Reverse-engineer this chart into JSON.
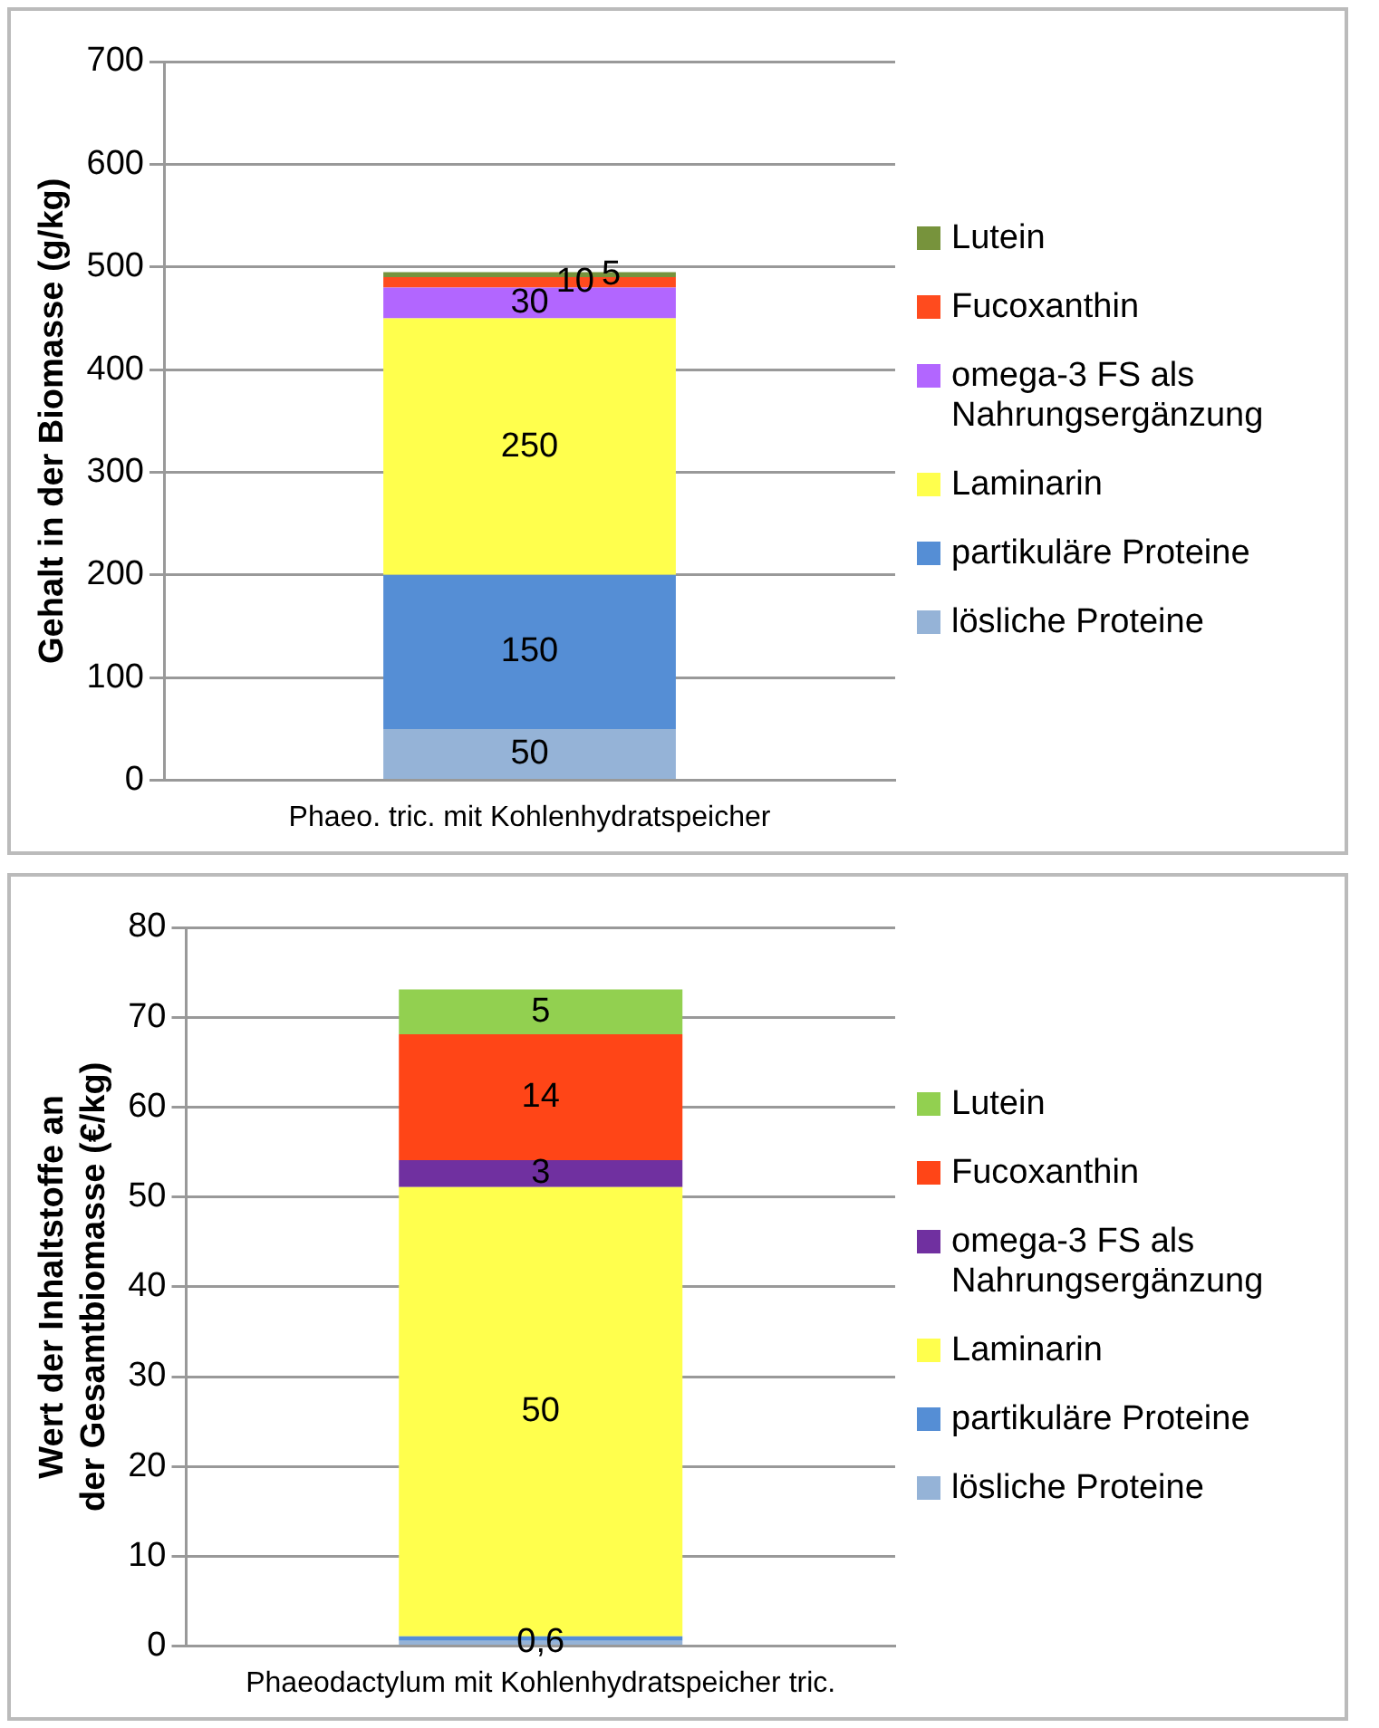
{
  "chart_data": [
    {
      "type": "bar",
      "stacked": true,
      "categories": [
        "Phaeo. tric. mit Kohlenhydratspeicher"
      ],
      "ylabel": "Gehalt in der Biomasse (g/kg)",
      "ylim": [
        0,
        700
      ],
      "yticks": [
        0,
        100,
        200,
        300,
        400,
        500,
        600,
        700
      ],
      "grid": "y",
      "legend": "right",
      "series": [
        {
          "name": "lösliche Proteine",
          "color": "#95b3d7",
          "values": [
            50
          ],
          "value_labels": [
            "50"
          ]
        },
        {
          "name": "partikuläre Proteine",
          "color": "#558ed5",
          "values": [
            150
          ],
          "value_labels": [
            "150"
          ]
        },
        {
          "name": "Laminarin",
          "color": "#ffff4d",
          "values": [
            250
          ],
          "value_labels": [
            "250"
          ]
        },
        {
          "name": "omega-3 FS als Nahrungsergänzung",
          "color": "#b266ff",
          "values": [
            30
          ],
          "value_labels": [
            "30"
          ]
        },
        {
          "name": "Fucoxanthin",
          "color": "#ff4b1e",
          "values": [
            10
          ],
          "value_labels": [
            "10"
          ]
        },
        {
          "name": "Lutein",
          "color": "#77933c",
          "values": [
            5
          ],
          "value_labels": [
            "5"
          ]
        }
      ]
    },
    {
      "type": "bar",
      "stacked": true,
      "categories": [
        "Phaeodactylum mit Kohlenhydratspeicher tric."
      ],
      "ylabel": "Wert der Inhaltstoffe an der Gesamtbiomasse (€/kg)",
      "ylim": [
        0,
        80
      ],
      "yticks": [
        0,
        10,
        20,
        30,
        40,
        50,
        60,
        70,
        80
      ],
      "grid": "y",
      "legend": "right",
      "series": [
        {
          "name": "lösliche Proteine",
          "color": "#95b3d7",
          "values": [
            0.6
          ],
          "value_labels": [
            "0,6"
          ]
        },
        {
          "name": "partikuläre Proteine",
          "color": "#558ed5",
          "values": [
            0.5
          ],
          "value_labels": [
            null
          ]
        },
        {
          "name": "Laminarin",
          "color": "#ffff4d",
          "values": [
            50
          ],
          "value_labels": [
            "50"
          ]
        },
        {
          "name": "omega-3 FS als Nahrungsergänzung",
          "color": "#7030a0",
          "values": [
            3
          ],
          "value_labels": [
            "3"
          ]
        },
        {
          "name": "Fucoxanthin",
          "color": "#ff4517",
          "values": [
            14
          ],
          "value_labels": [
            "14"
          ]
        },
        {
          "name": "Lutein",
          "color": "#92d050",
          "values": [
            5
          ],
          "value_labels": [
            "5"
          ]
        }
      ]
    }
  ]
}
